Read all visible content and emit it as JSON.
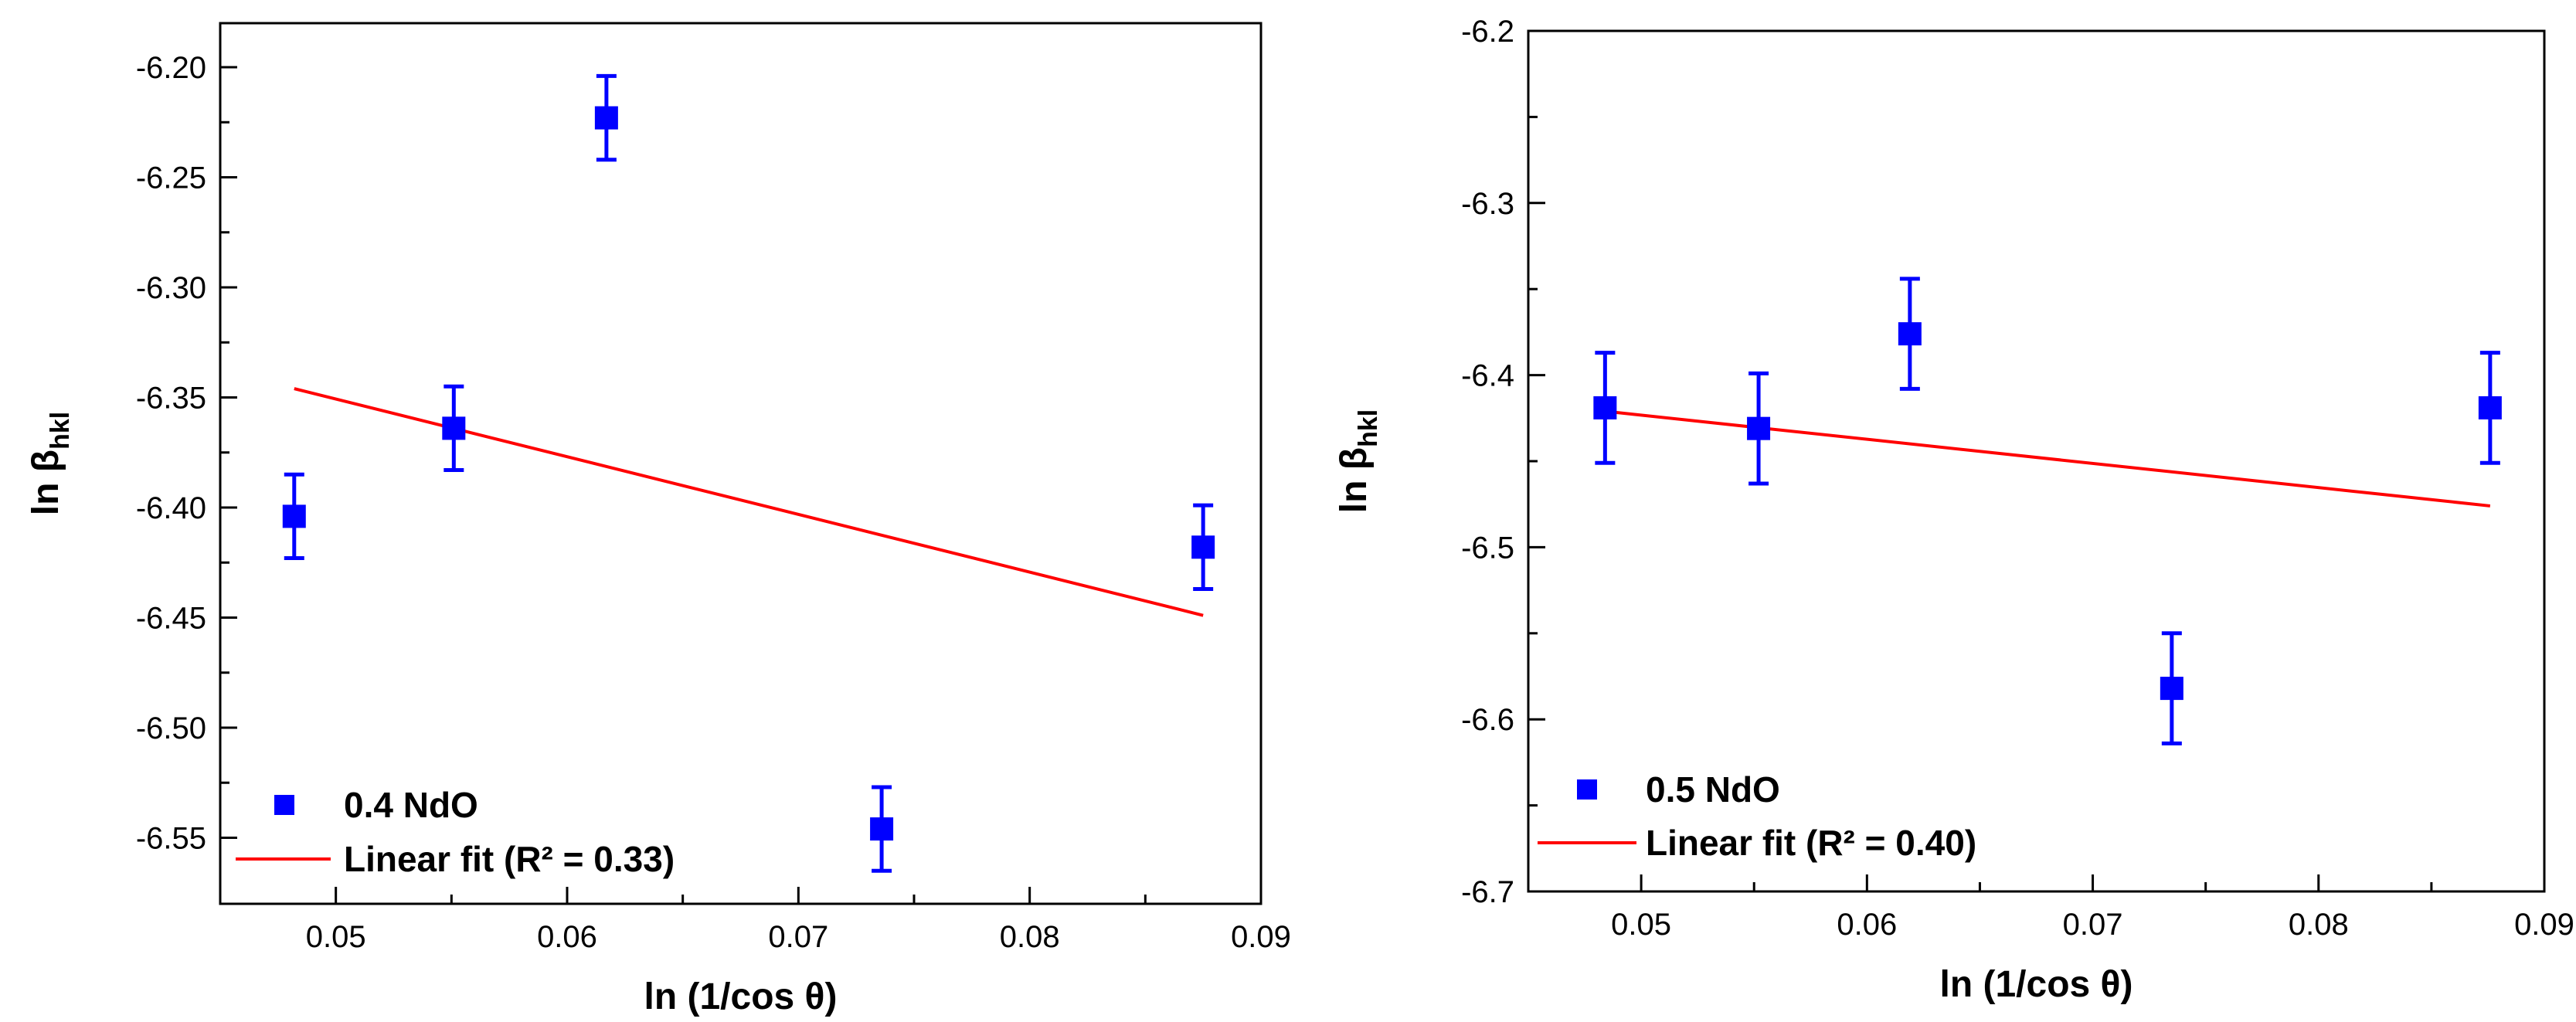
{
  "chart_data": [
    {
      "type": "scatter",
      "xlabel": "ln (1/cos θ)",
      "ylabel_main": "ln β",
      "ylabel_sub": "hkl",
      "xlim": [
        0.045,
        0.09
      ],
      "ylim": [
        -6.58,
        -6.18
      ],
      "xticks": [
        0.05,
        0.06,
        0.07,
        0.08,
        0.09
      ],
      "xtick_labels": [
        "0.05",
        "0.06",
        "0.07",
        "0.08",
        "0.09"
      ],
      "yticks": [
        -6.2,
        -6.25,
        -6.3,
        -6.35,
        -6.4,
        -6.45,
        -6.5,
        -6.55
      ],
      "ytick_labels": [
        "-6.20",
        "-6.25",
        "-6.30",
        "-6.35",
        "-6.40",
        "-6.45",
        "-6.50",
        "-6.55"
      ],
      "series": [
        {
          "name": "0.4 NdO",
          "color": "#0000ff",
          "x": [
            0.0482,
            0.0551,
            0.0617,
            0.0736,
            0.0875
          ],
          "y": [
            -6.404,
            -6.364,
            -6.223,
            -6.546,
            -6.418
          ],
          "yerr": [
            0.019,
            0.019,
            0.019,
            0.019,
            0.019
          ]
        }
      ],
      "fit": {
        "name": "Linear fit (R² = 0.33)",
        "color": "#ff0000",
        "x": [
          0.0482,
          0.0875
        ],
        "y": [
          -6.346,
          -6.449
        ]
      },
      "legend_position": "bottom-left"
    },
    {
      "type": "scatter",
      "xlabel": "ln (1/cos θ)",
      "ylabel_main": "ln β",
      "ylabel_sub": "hkl",
      "xlim": [
        0.045,
        0.09
      ],
      "ylim": [
        -6.7,
        -6.2
      ],
      "xticks": [
        0.05,
        0.06,
        0.07,
        0.08,
        0.09
      ],
      "xtick_labels": [
        "0.05",
        "0.06",
        "0.07",
        "0.08",
        "0.09"
      ],
      "yticks": [
        -6.2,
        -6.3,
        -6.4,
        -6.5,
        -6.6,
        -6.7
      ],
      "ytick_labels": [
        "-6.2",
        "-6.3",
        "-6.4",
        "-6.5",
        "-6.6",
        "-6.7"
      ],
      "series": [
        {
          "name": "0.5 NdO",
          "color": "#0000ff",
          "x": [
            0.0484,
            0.0552,
            0.0619,
            0.0735,
            0.0876
          ],
          "y": [
            -6.419,
            -6.431,
            -6.376,
            -6.582,
            -6.419
          ],
          "yerr": [
            0.032,
            0.032,
            0.032,
            0.032,
            0.032
          ]
        }
      ],
      "fit": {
        "name": "Linear fit (R² = 0.40)",
        "color": "#ff0000",
        "x": [
          0.0484,
          0.0876
        ],
        "y": [
          -6.421,
          -6.476
        ]
      },
      "legend_position": "bottom-left"
    }
  ]
}
